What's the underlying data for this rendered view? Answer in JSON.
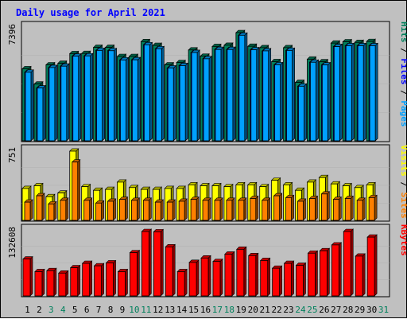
{
  "chart_data": [
    {
      "type": "bar",
      "title": "Daily usage for April 2021",
      "panel": "hits-files-pages",
      "ymax_label": "7396",
      "ymax": 7396,
      "legend": [
        {
          "label": "Pages",
          "color": "#00a0ff"
        },
        {
          "label": "Files",
          "color": "#0000ff"
        },
        {
          "label": "Hits",
          "color": "#00805c"
        }
      ],
      "categories": [
        "1",
        "2",
        "3",
        "4",
        "5",
        "6",
        "7",
        "8",
        "9",
        "10",
        "11",
        "12",
        "13",
        "14",
        "15",
        "16",
        "17",
        "18",
        "19",
        "20",
        "21",
        "22",
        "23",
        "24",
        "25",
        "26",
        "27",
        "28",
        "29",
        "30",
        "31"
      ],
      "series": [
        {
          "name": "Hits",
          "values": [
            4750,
            3740,
            5010,
            5110,
            5750,
            5760,
            6160,
            6160,
            5560,
            5560,
            6540,
            6290,
            5010,
            5160,
            5990,
            5580,
            6220,
            6300,
            7130,
            6230,
            6140,
            5220,
            6140,
            3850,
            5380,
            5210,
            6440,
            6530,
            6490,
            6550,
            0
          ]
        },
        {
          "name": "Files",
          "values": [
            4520,
            3480,
            4830,
            4920,
            5580,
            5600,
            5960,
            5940,
            5330,
            5340,
            6330,
            6070,
            4800,
            4960,
            5820,
            5410,
            6020,
            6020,
            6960,
            6000,
            5930,
            5010,
            5960,
            3600,
            5180,
            5000,
            6210,
            6270,
            6270,
            6270,
            0
          ]
        },
        {
          "name": "Pages",
          "values": [
            4520,
            3480,
            4830,
            4920,
            5580,
            5600,
            5960,
            5940,
            5330,
            5340,
            6330,
            6070,
            4800,
            4960,
            5820,
            5410,
            6020,
            6020,
            6960,
            6000,
            5930,
            5010,
            5960,
            3600,
            5180,
            5000,
            6210,
            6270,
            6270,
            6270,
            0
          ]
        }
      ]
    },
    {
      "type": "bar",
      "panel": "visits-sites",
      "ymax_label": "751",
      "ymax": 751,
      "legend": [
        {
          "label": "Sites",
          "color": "#ff8000"
        },
        {
          "label": "Visits",
          "color": "#ffff00"
        }
      ],
      "categories": [
        "1",
        "2",
        "3",
        "4",
        "5",
        "6",
        "7",
        "8",
        "9",
        "10",
        "11",
        "12",
        "13",
        "14",
        "15",
        "16",
        "17",
        "18",
        "19",
        "20",
        "21",
        "22",
        "23",
        "24",
        "25",
        "26",
        "27",
        "28",
        "29",
        "30",
        "31"
      ],
      "series": [
        {
          "name": "Visits",
          "values": [
            350,
            380,
            260,
            300,
            760,
            370,
            330,
            340,
            420,
            360,
            340,
            340,
            350,
            350,
            390,
            380,
            380,
            370,
            390,
            390,
            370,
            440,
            390,
            330,
            420,
            470,
            400,
            380,
            360,
            390,
            0
          ]
        },
        {
          "name": "Sites",
          "values": [
            200,
            270,
            180,
            220,
            640,
            220,
            190,
            210,
            230,
            220,
            220,
            200,
            200,
            210,
            230,
            220,
            220,
            220,
            220,
            240,
            220,
            270,
            250,
            210,
            240,
            290,
            230,
            240,
            220,
            250,
            0
          ]
        }
      ]
    },
    {
      "type": "bar",
      "panel": "kbytes",
      "ymax_label": "132608",
      "ymax": 132608,
      "legend": [
        {
          "label": "KBytes",
          "color": "#ff0000"
        }
      ],
      "categories": [
        "1",
        "2",
        "3",
        "4",
        "5",
        "6",
        "7",
        "8",
        "9",
        "10",
        "11",
        "12",
        "13",
        "14",
        "15",
        "16",
        "17",
        "18",
        "19",
        "20",
        "21",
        "22",
        "23",
        "24",
        "25",
        "26",
        "27",
        "28",
        "29",
        "30",
        "31"
      ],
      "series": [
        {
          "name": "KBytes",
          "values": [
            76000,
            50000,
            52000,
            47000,
            58000,
            67000,
            62000,
            68000,
            50000,
            89000,
            132608,
            132000,
            101000,
            50000,
            69000,
            78000,
            71000,
            86000,
            96000,
            83000,
            73000,
            57000,
            67000,
            63000,
            88000,
            93000,
            105000,
            132608,
            82000,
            121000,
            0
          ]
        }
      ]
    }
  ],
  "x_axis": {
    "labels": [
      "1",
      "2",
      "3",
      "4",
      "5",
      "6",
      "7",
      "8",
      "9",
      "10",
      "11",
      "12",
      "13",
      "14",
      "15",
      "16",
      "17",
      "18",
      "19",
      "20",
      "21",
      "22",
      "23",
      "24",
      "25",
      "26",
      "27",
      "28",
      "29",
      "30",
      "31"
    ],
    "weekend": [
      3,
      4,
      10,
      11,
      17,
      18,
      24,
      25,
      31
    ]
  },
  "colors": {
    "background": "#c0c0c0",
    "title": "#0000ff",
    "weekday_label": "#000000",
    "weekend_label": "#00805c",
    "separator": "#808080",
    "hits": "#00805c",
    "files": "#0000ff",
    "pages": "#00a0ff",
    "visits": "#ffff00",
    "sites": "#ff8000",
    "kbytes": "#ff0000"
  }
}
